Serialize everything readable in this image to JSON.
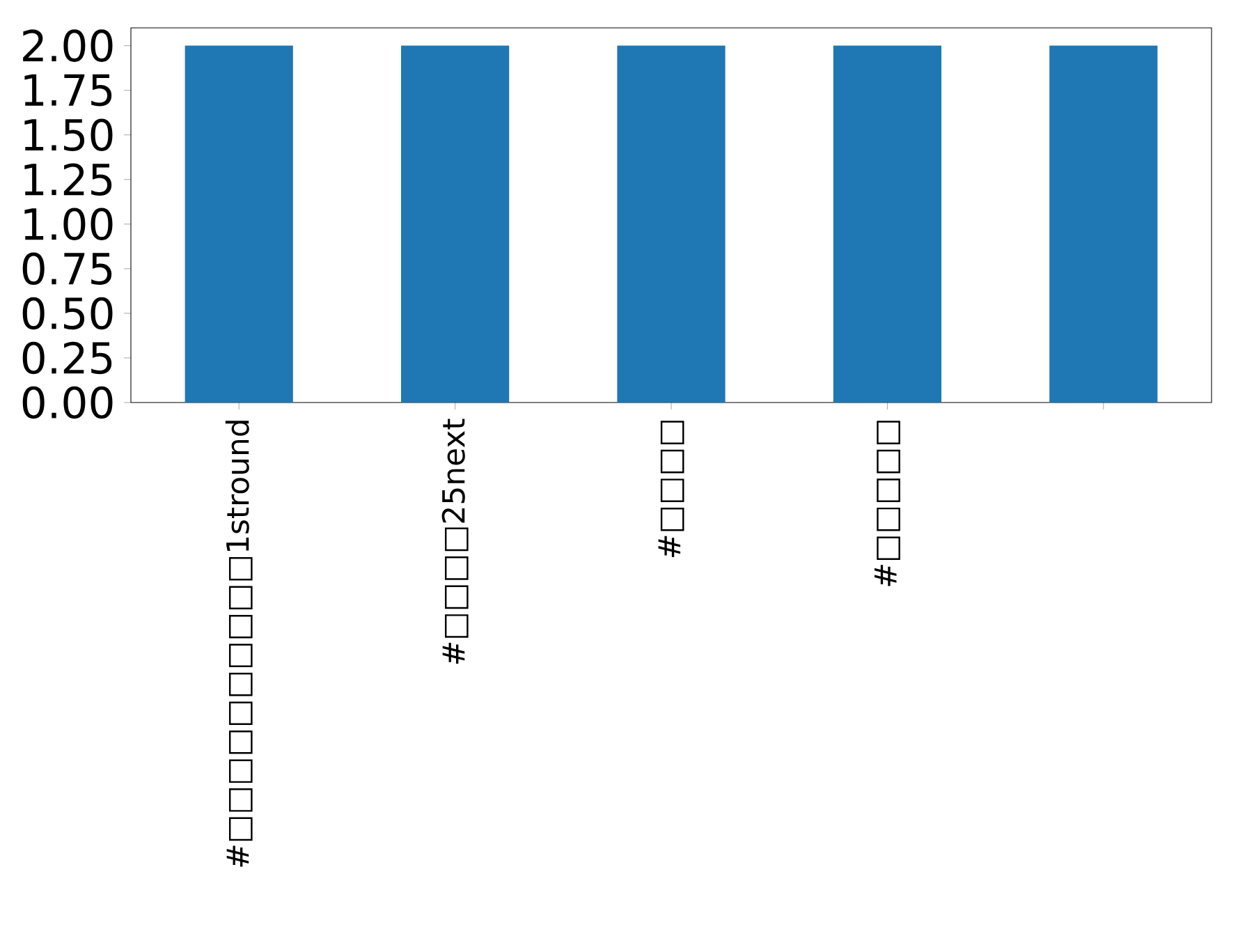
{
  "chart_data": {
    "type": "bar",
    "categories": [
      "#□□□□□□□□□□1stround",
      "#□□□□25next",
      "#□□□□",
      "#□□□□□",
      null
    ],
    "values": [
      2,
      2,
      2,
      2,
      2
    ],
    "color": "#1f77b4",
    "ylim": [
      0,
      2.1
    ],
    "yticks": [
      {
        "value": 0,
        "label": "0.00"
      },
      {
        "value": 0.25,
        "label": "0.25"
      },
      {
        "value": 0.5,
        "label": "0.50"
      },
      {
        "value": 0.75,
        "label": "0.75"
      },
      {
        "value": 1,
        "label": "1.00"
      },
      {
        "value": 1.25,
        "label": "1.25"
      },
      {
        "value": 1.5,
        "label": "1.50"
      },
      {
        "value": 1.75,
        "label": "1.75"
      },
      {
        "value": 2,
        "label": "2.00"
      }
    ],
    "grid": false
  }
}
